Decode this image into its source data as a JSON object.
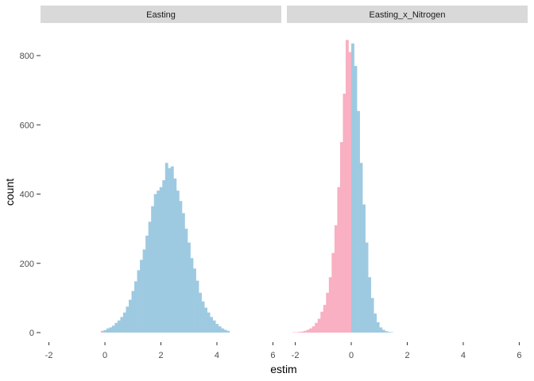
{
  "chart_data": {
    "type": "bar",
    "subtype": "faceted-histogram",
    "xlabel": "estim",
    "ylabel": "count",
    "ylim": [
      0,
      850
    ],
    "xlim": [
      -2.3,
      6.3
    ],
    "y_ticks": [
      0,
      200,
      400,
      600,
      800
    ],
    "y_tick_labels": [
      "0",
      "200",
      "400",
      "600",
      "800"
    ],
    "x_ticks": [
      -2,
      0,
      2,
      4,
      6
    ],
    "x_tick_labels": [
      "-2",
      "0",
      "2",
      "4",
      "6"
    ],
    "grid": false,
    "legend": "none",
    "colors": {
      "positive": "#9ecae1",
      "negative": "#f8b0c2",
      "strip_bg": "#d9d9d9",
      "tick": "#333333"
    },
    "facets": [
      {
        "label": "Easting",
        "bin_start": -0.15,
        "bin_width": 0.1,
        "values": [
          5,
          7,
          12,
          15,
          20,
          28,
          35,
          45,
          58,
          75,
          95,
          120,
          148,
          180,
          210,
          240,
          280,
          320,
          365,
          400,
          410,
          420,
          440,
          490,
          475,
          480,
          445,
          410,
          380,
          345,
          300,
          260,
          215,
          185,
          150,
          115,
          90,
          72,
          58,
          45,
          35,
          25,
          18,
          12,
          8,
          5
        ]
      },
      {
        "label": "Easting_x_Nitrogen",
        "bin_start": -2.1,
        "bin_width": 0.1,
        "values": [
          1,
          1,
          2,
          3,
          5,
          8,
          12,
          18,
          28,
          40,
          60,
          80,
          115,
          160,
          230,
          310,
          420,
          550,
          690,
          845,
          810,
          835,
          770,
          640,
          490,
          370,
          260,
          160,
          100,
          55,
          30,
          15,
          8,
          4,
          2,
          1
        ]
      }
    ]
  }
}
